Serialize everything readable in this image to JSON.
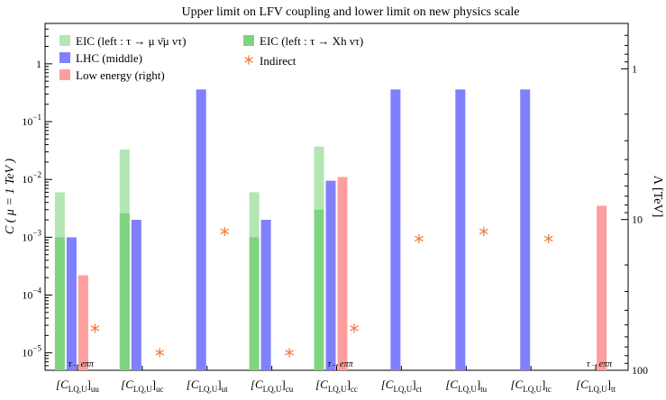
{
  "chart_data": {
    "type": "bar",
    "title": "Upper limit on LFV coupling and lower limit on new physics scale",
    "ylabel_left": "C ( μ = 1 TeV )",
    "ylabel_right": "Λ [TeV]",
    "yscale": "log",
    "ylim_left": [
      5e-06,
      5
    ],
    "ylim_right": [
      100,
      0.5
    ],
    "yticks_left": [
      {
        "value": 1e-05,
        "base": "10",
        "exp": "−5"
      },
      {
        "value": 0.0001,
        "base": "10",
        "exp": "−4"
      },
      {
        "value": 0.001,
        "base": "10",
        "exp": "−3"
      },
      {
        "value": 0.01,
        "base": "10",
        "exp": "−2"
      },
      {
        "value": 0.1,
        "base": "10",
        "exp": "−1"
      },
      {
        "value": 1,
        "base": "1",
        "exp": ""
      }
    ],
    "yticks_right": [
      {
        "value": 100,
        "label": "100"
      },
      {
        "value": 10,
        "label": "10"
      },
      {
        "value": 1,
        "label": "1"
      }
    ],
    "categories": [
      {
        "main": "[C",
        "sub": "LQ,U",
        "close": "]",
        "sub2": "uu"
      },
      {
        "main": "[C",
        "sub": "LQ,U",
        "close": "]",
        "sub2": "uc"
      },
      {
        "main": "[C",
        "sub": "LQ,U",
        "close": "]",
        "sub2": "ut"
      },
      {
        "main": "[C",
        "sub": "LQ,U",
        "close": "]",
        "sub2": "cu"
      },
      {
        "main": "[C",
        "sub": "LQ,U",
        "close": "]",
        "sub2": "cc"
      },
      {
        "main": "[C",
        "sub": "LQ,U",
        "close": "]",
        "sub2": "ct"
      },
      {
        "main": "[C",
        "sub": "LQ,U",
        "close": "]",
        "sub2": "tu"
      },
      {
        "main": "[C",
        "sub": "LQ,U",
        "close": "]",
        "sub2": "tc"
      },
      {
        "main": "[C",
        "sub": "LQ,U",
        "close": "]",
        "sub2": "tt"
      }
    ],
    "series": [
      {
        "key": "eic_mu",
        "name": "EIC (left : τ → μ ν̄μ ντ)",
        "color": "#b3e6b3",
        "values": [
          0.006,
          0.033,
          null,
          0.006,
          0.037,
          null,
          null,
          null,
          null
        ]
      },
      {
        "key": "eic_xh",
        "name": "EIC (left : τ → Xh ντ)",
        "color": "#7fd47f",
        "values": [
          0.001,
          0.0026,
          null,
          0.001,
          0.003,
          null,
          null,
          null,
          null
        ]
      },
      {
        "key": "lhc",
        "name": "LHC (middle)",
        "color": "#8080ff",
        "values": [
          0.001,
          0.002,
          0.36,
          0.002,
          0.0095,
          0.36,
          0.36,
          0.36,
          null
        ]
      },
      {
        "key": "low",
        "name": "Low energy (right)",
        "color": "#ff9e9e",
        "values": [
          0.00022,
          null,
          null,
          null,
          0.011,
          null,
          null,
          null,
          0.0035
        ]
      }
    ],
    "indirect": {
      "name": "Indirect",
      "color": "#f07830",
      "values": [
        2.5e-05,
        9.5e-06,
        0.0012,
        9.5e-06,
        2.5e-05,
        0.0009,
        0.0012,
        0.0009,
        null
      ]
    },
    "notes": [
      {
        "category": 0,
        "text": "τ→eππ"
      },
      {
        "category": 4,
        "text": "τ→eππ"
      },
      {
        "category": 8,
        "text": "τ→eππ"
      }
    ],
    "bar_floor": 5e-06,
    "legend_position": "top-left"
  }
}
